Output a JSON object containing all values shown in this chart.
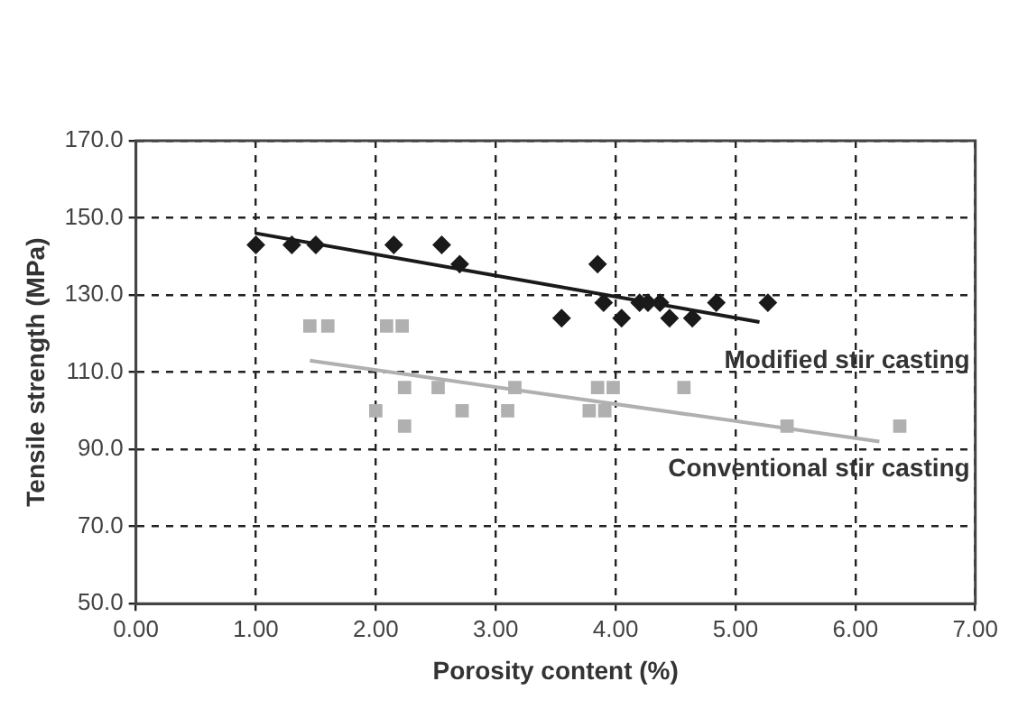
{
  "chart_data": {
    "type": "scatter",
    "xlabel": "Porosity content (%)",
    "ylabel": "Tensile strength (MPa)",
    "xlim": [
      0,
      7
    ],
    "xticks": [
      {
        "value": 0,
        "label": "0.00"
      },
      {
        "value": 1,
        "label": "1.00"
      },
      {
        "value": 2,
        "label": "2.00"
      },
      {
        "value": 3,
        "label": "3.00"
      },
      {
        "value": 4,
        "label": "4.00"
      },
      {
        "value": 5,
        "label": "5.00"
      },
      {
        "value": 6,
        "label": "6.00"
      },
      {
        "value": 7,
        "label": "7.00"
      }
    ],
    "ylim": [
      50,
      170
    ],
    "yticks": [
      {
        "value": 50,
        "label": "50.0"
      },
      {
        "value": 70,
        "label": "70.0"
      },
      {
        "value": 90,
        "label": "90.0"
      },
      {
        "value": 110,
        "label": "110.0"
      },
      {
        "value": 130,
        "label": "130.0"
      },
      {
        "value": 150,
        "label": "150.0"
      },
      {
        "value": 170,
        "label": "170.0"
      }
    ],
    "grid": true,
    "legend": false,
    "series": [
      {
        "name": "Modified stir casting",
        "color": "#1a1a1a",
        "marker": "diamond",
        "x": [
          1.0,
          1.3,
          1.5,
          2.15,
          2.55,
          2.7,
          3.55,
          3.85,
          3.9,
          4.05,
          4.2,
          4.27,
          4.37,
          4.45,
          4.64,
          4.84,
          5.27
        ],
        "values": [
          143,
          143,
          143,
          143,
          143,
          138,
          124,
          138,
          128,
          124,
          128,
          128,
          128,
          124,
          124,
          128,
          128
        ]
      },
      {
        "type": "line",
        "color": "#1a1a1a",
        "marker": "none",
        "x": [
          1.0,
          5.2
        ],
        "values": [
          146,
          123
        ]
      },
      {
        "name": "Conventional stir casting",
        "color": "#b0b0b0",
        "marker": "square",
        "x": [
          1.45,
          1.6,
          2.0,
          2.09,
          2.22,
          2.24,
          2.24,
          2.52,
          2.72,
          3.1,
          3.16,
          3.78,
          3.91,
          3.85,
          3.98,
          4.57,
          5.43,
          6.37
        ],
        "values": [
          122,
          122,
          100,
          122,
          122,
          106,
          96,
          106,
          100,
          100,
          106,
          100,
          100,
          106,
          106,
          106,
          96,
          96
        ]
      },
      {
        "type": "line",
        "color": "#b0b0b0",
        "marker": "none",
        "x": [
          1.45,
          6.2
        ],
        "values": [
          113,
          92
        ]
      }
    ]
  }
}
